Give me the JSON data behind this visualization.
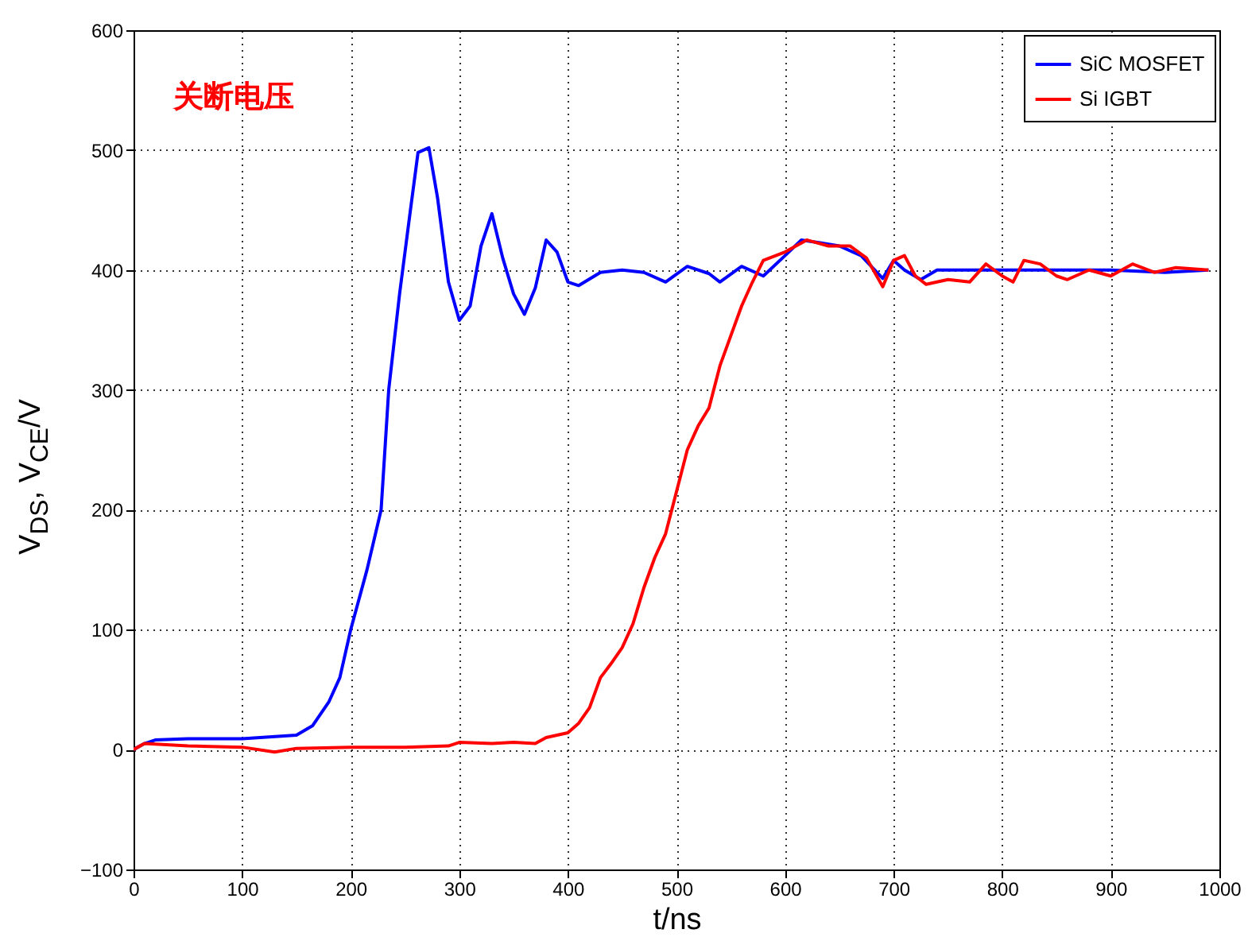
{
  "chart_data": {
    "type": "line",
    "xlabel": "t/ns",
    "ylabel": "V$_{DS}$, V$_{CE}$/V",
    "annotations": [
      "关断电压"
    ],
    "xlim": [
      0,
      1000
    ],
    "xticks": [
      0,
      100,
      200,
      300,
      400,
      500,
      600,
      700,
      800,
      900,
      1000
    ],
    "ylim": [
      -100,
      600
    ],
    "yticks": [
      -100,
      0,
      100,
      200,
      300,
      400,
      500,
      600
    ],
    "grid": true,
    "legend": "top right",
    "series": [
      {
        "name": "SiC MOSFET",
        "color": "#0000ff",
        "x": [
          0,
          10,
          20,
          50,
          100,
          150,
          165,
          180,
          190,
          200,
          215,
          228,
          235,
          245,
          255,
          262,
          272,
          280,
          290,
          300,
          310,
          320,
          330,
          340,
          350,
          360,
          370,
          380,
          390,
          400,
          410,
          430,
          450,
          470,
          490,
          510,
          530,
          540,
          560,
          580,
          600,
          615,
          630,
          650,
          670,
          690,
          700,
          710,
          725,
          740,
          760,
          800,
          850,
          900,
          950,
          990
        ],
        "values": [
          0,
          5,
          8,
          9,
          9,
          12,
          20,
          40,
          60,
          100,
          150,
          200,
          300,
          380,
          450,
          498,
          502,
          460,
          390,
          358,
          370,
          420,
          447,
          410,
          380,
          363,
          385,
          425,
          415,
          390,
          387,
          398,
          400,
          398,
          390,
          403,
          397,
          390,
          403,
          395,
          412,
          425,
          423,
          420,
          412,
          393,
          408,
          400,
          392,
          400,
          400,
          400,
          400,
          400,
          398,
          400
        ]
      },
      {
        "name": "Si IGBT",
        "color": "#ff0000",
        "x": [
          0,
          10,
          50,
          100,
          130,
          150,
          200,
          250,
          290,
          300,
          330,
          350,
          370,
          380,
          400,
          410,
          420,
          430,
          440,
          450,
          460,
          470,
          480,
          490,
          500,
          510,
          520,
          530,
          540,
          550,
          560,
          570,
          580,
          600,
          620,
          640,
          660,
          675,
          690,
          700,
          710,
          720,
          730,
          750,
          770,
          785,
          800,
          810,
          820,
          835,
          850,
          860,
          880,
          900,
          920,
          940,
          960,
          990
        ],
        "values": [
          0,
          5,
          3,
          2,
          -2,
          1,
          2,
          2,
          3,
          6,
          5,
          6,
          5,
          10,
          14,
          22,
          35,
          60,
          72,
          85,
          105,
          135,
          160,
          180,
          215,
          250,
          270,
          285,
          320,
          345,
          370,
          390,
          408,
          415,
          425,
          420,
          420,
          410,
          386,
          408,
          412,
          395,
          388,
          392,
          390,
          405,
          395,
          390,
          408,
          405,
          395,
          392,
          400,
          395,
          405,
          398,
          402,
          400
        ]
      }
    ]
  }
}
